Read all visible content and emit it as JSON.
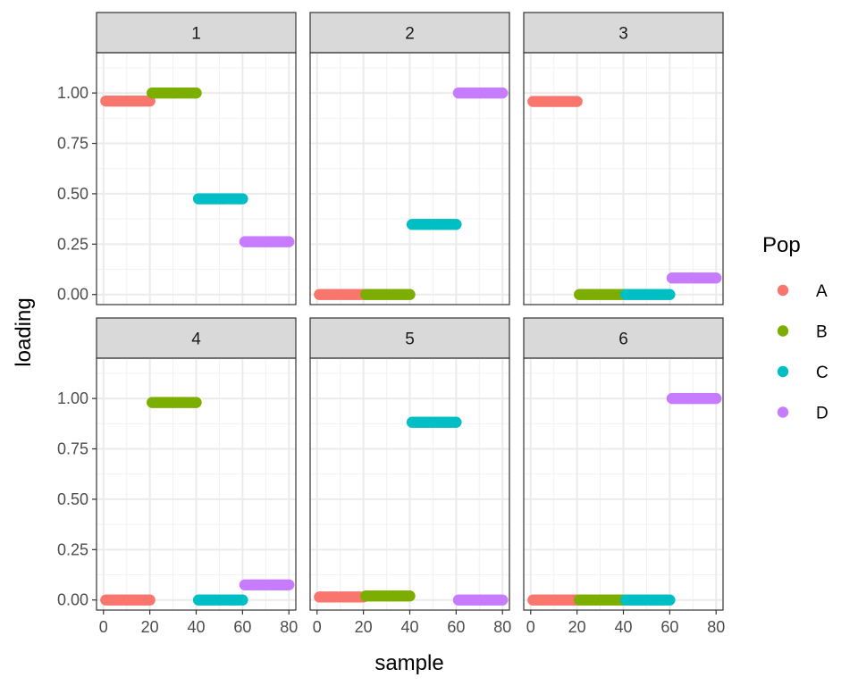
{
  "chart_data": {
    "type": "scatter",
    "facet_labels": [
      "1",
      "2",
      "3",
      "4",
      "5",
      "6"
    ],
    "xlabel": "sample",
    "ylabel": "loading",
    "xlim": [
      -3,
      83
    ],
    "ylim": [
      -0.05,
      1.2
    ],
    "x_ticks": [
      0,
      20,
      40,
      60,
      80
    ],
    "x_tick_labels": [
      "0",
      "20",
      "40",
      "60",
      "80"
    ],
    "y_ticks": [
      0,
      0.25,
      0.5,
      0.75,
      1.0
    ],
    "y_tick_labels": [
      "0.00",
      "0.25",
      "0.50",
      "0.75",
      "1.00"
    ],
    "legend": {
      "title": "Pop",
      "entries": [
        {
          "label": "A",
          "color": "#F8766D"
        },
        {
          "label": "B",
          "color": "#7CAE00"
        },
        {
          "label": "C",
          "color": "#00BFC4"
        },
        {
          "label": "D",
          "color": "#C77CFF"
        }
      ]
    },
    "group_ranges": {
      "A": [
        1,
        20
      ],
      "B": [
        21,
        40
      ],
      "C": [
        41,
        60
      ],
      "D": [
        61,
        80
      ]
    },
    "facets": [
      {
        "label": "1",
        "loadings": {
          "A": 0.96,
          "B": 1.0,
          "C": 0.475,
          "D": 0.262
        }
      },
      {
        "label": "2",
        "loadings": {
          "A": 0.0,
          "B": 0.0,
          "C": 0.348,
          "D": 1.0
        }
      },
      {
        "label": "3",
        "loadings": {
          "A": 0.958,
          "B": 0.0,
          "C": 0.0,
          "D": 0.082
        }
      },
      {
        "label": "4",
        "loadings": {
          "A": 0.0,
          "B": 0.98,
          "C": 0.0,
          "D": 0.075
        }
      },
      {
        "label": "5",
        "loadings": {
          "A": 0.015,
          "B": 0.02,
          "C": 0.882,
          "D": 0.0
        }
      },
      {
        "label": "6",
        "loadings": {
          "A": 0.0,
          "B": 0.0,
          "C": 0.0,
          "D": 1.0
        }
      }
    ]
  }
}
